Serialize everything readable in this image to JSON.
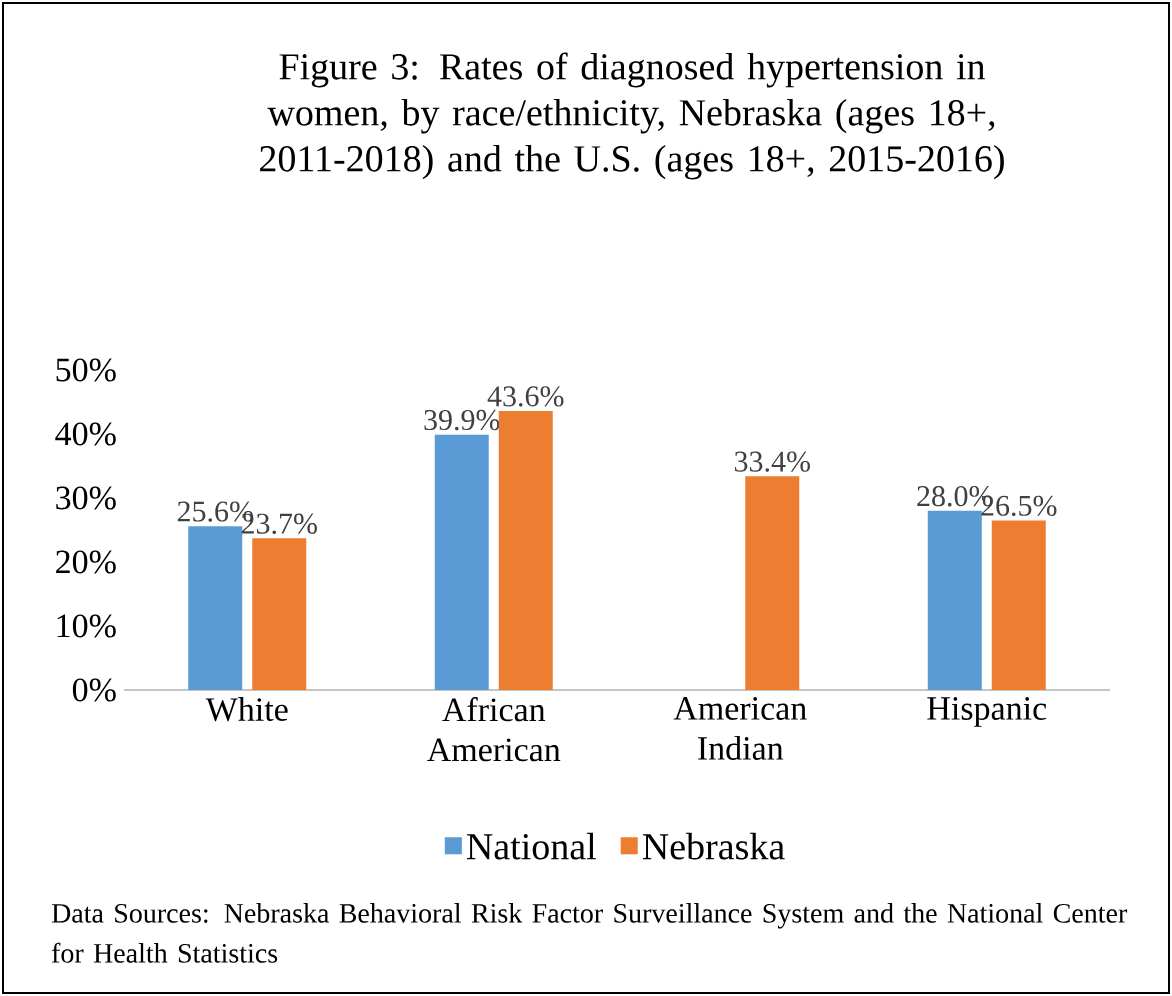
{
  "chart_data": {
    "type": "bar",
    "title": "Figure 3: Rates of diagnosed hypertension in women, by race/ethnicity, Nebraska (ages 18+, 2011-2018) and the U.S. (ages 18+, 2015-2016)",
    "categories": [
      "White",
      "African American",
      "American Indian",
      "Hispanic"
    ],
    "series": [
      {
        "name": "National",
        "color": "#5b9bd5",
        "values": [
          25.6,
          39.9,
          null,
          28.0
        ],
        "value_labels": [
          "25.6%",
          "39.9%",
          null,
          "28.0%"
        ]
      },
      {
        "name": "Nebraska",
        "color": "#ed7d31",
        "values": [
          23.7,
          43.6,
          33.4,
          26.5
        ],
        "value_labels": [
          "23.7%",
          "43.6%",
          "33.4%",
          "26.5%"
        ]
      }
    ],
    "ylim": [
      0,
      50
    ],
    "yticks": [
      {
        "value": 0,
        "label": "0%"
      },
      {
        "value": 10,
        "label": "10%"
      },
      {
        "value": 20,
        "label": "20%"
      },
      {
        "value": 30,
        "label": "30%"
      },
      {
        "value": 40,
        "label": "40%"
      },
      {
        "value": 50,
        "label": "50%"
      }
    ],
    "grid": false,
    "legend": "bottom",
    "annotations": [
      "Data Sources: Nebraska Behavioral Risk Factor Surveillance System and the National Center for Health Statistics"
    ]
  }
}
